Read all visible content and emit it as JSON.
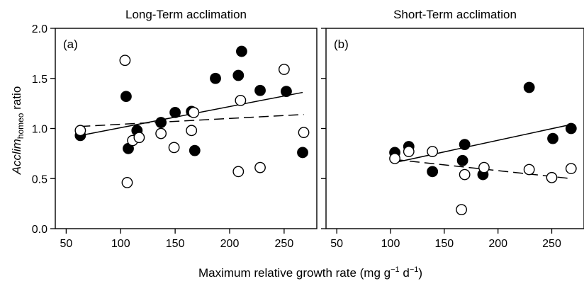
{
  "figure": {
    "xlabel_main": "Maximum relative growth rate (mg g",
    "xlabel_sup1": "−1",
    "xlabel_mid": " d",
    "xlabel_sup2": "−1",
    "xlabel_end": ")",
    "ylabel_italic": "Acclim",
    "ylabel_sub": "homeo",
    "ylabel_rest": " ratio"
  },
  "chart_data": [
    {
      "type": "scatter",
      "title": "Long-Term acclimation",
      "panel_label": "(a)",
      "xlim": [
        40,
        280
      ],
      "ylim": [
        0,
        2.0
      ],
      "xticks": [
        "50",
        "100",
        "150",
        "200",
        "250"
      ],
      "yticks": [
        "0.0",
        "0.5",
        "1.0",
        "1.5",
        "2.0"
      ],
      "series": [
        {
          "marker": "filled",
          "points": [
            [
              63,
              0.93
            ],
            [
              105,
              1.32
            ],
            [
              107,
              0.8
            ],
            [
              115,
              0.98
            ],
            [
              137,
              1.06
            ],
            [
              150,
              1.16
            ],
            [
              165,
              1.17
            ],
            [
              168,
              0.78
            ],
            [
              187,
              1.5
            ],
            [
              208,
              1.53
            ],
            [
              211,
              1.77
            ],
            [
              228,
              1.38
            ],
            [
              252,
              1.37
            ],
            [
              267,
              0.76
            ]
          ],
          "fit": {
            "style": "solid",
            "x": [
              63,
              267
            ],
            "y": [
              0.93,
              1.36
            ]
          }
        },
        {
          "marker": "open",
          "points": [
            [
              63,
              0.98
            ],
            [
              104,
              1.68
            ],
            [
              106,
              0.46
            ],
            [
              111,
              0.88
            ],
            [
              117,
              0.91
            ],
            [
              137,
              0.95
            ],
            [
              149,
              0.81
            ],
            [
              165,
              0.98
            ],
            [
              167,
              1.16
            ],
            [
              208,
              0.57
            ],
            [
              210,
              1.28
            ],
            [
              228,
              0.61
            ],
            [
              250,
              1.59
            ],
            [
              268,
              0.96
            ]
          ],
          "fit": {
            "style": "dashed",
            "x": [
              63,
              268
            ],
            "y": [
              1.02,
              1.14
            ]
          }
        }
      ]
    },
    {
      "type": "scatter",
      "title": "Short-Term acclimation",
      "panel_label": "(b)",
      "xlim": [
        40,
        280
      ],
      "ylim": [
        0,
        2.0
      ],
      "xticks": [
        "50",
        "100",
        "150",
        "200",
        "250"
      ],
      "yticks": [],
      "series": [
        {
          "marker": "filled",
          "points": [
            [
              104,
              0.76
            ],
            [
              117,
              0.82
            ],
            [
              139,
              0.57
            ],
            [
              167,
              0.68
            ],
            [
              169,
              0.84
            ],
            [
              186,
              0.54
            ],
            [
              229,
              1.41
            ],
            [
              251,
              0.9
            ],
            [
              268,
              1.0
            ]
          ],
          "fit": {
            "style": "solid",
            "x": [
              104,
              268
            ],
            "y": [
              0.66,
              1.04
            ]
          }
        },
        {
          "marker": "open",
          "points": [
            [
              104,
              0.7
            ],
            [
              117,
              0.77
            ],
            [
              139,
              0.77
            ],
            [
              166,
              0.19
            ],
            [
              169,
              0.54
            ],
            [
              187,
              0.61
            ],
            [
              229,
              0.59
            ],
            [
              250,
              0.51
            ],
            [
              268,
              0.6
            ]
          ],
          "fit": {
            "style": "dashed",
            "x": [
              104,
              268
            ],
            "y": [
              0.69,
              0.5
            ]
          }
        }
      ]
    }
  ]
}
